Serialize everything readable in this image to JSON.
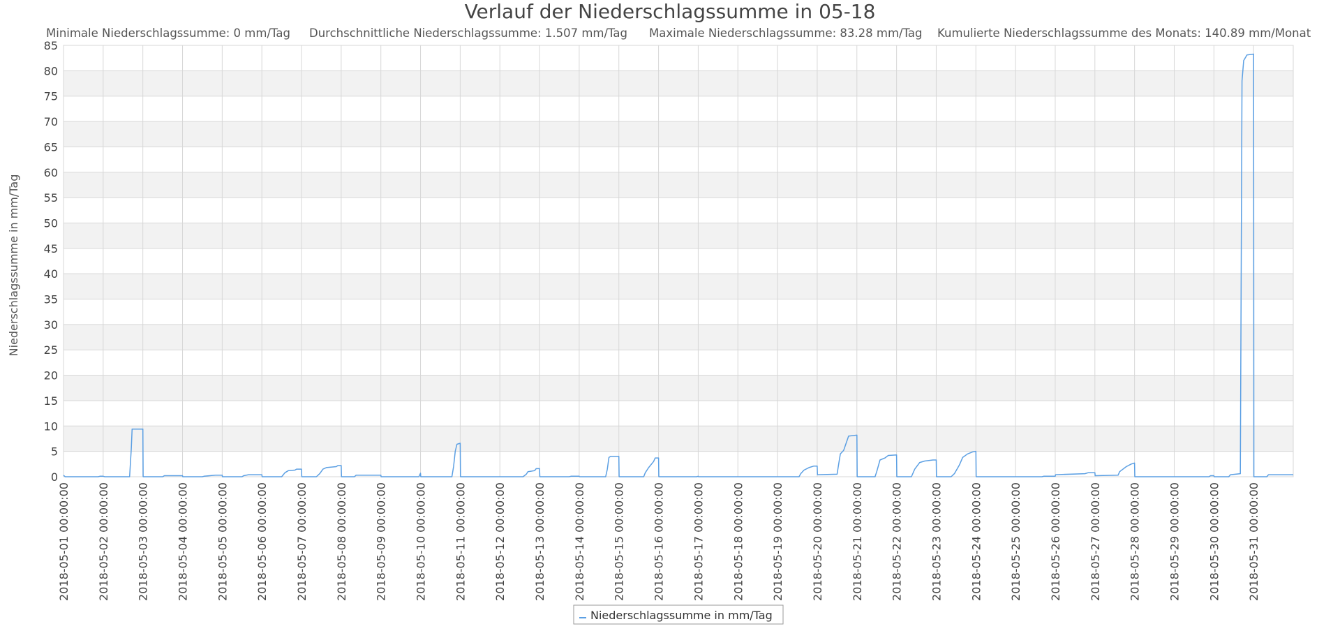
{
  "chart_data": {
    "type": "line",
    "title": "Verlauf der Niederschlagssumme in 05-18",
    "subtitle_stats": [
      "Minimale Niederschlagssumme: 0 mm/Tag",
      "Durchschnittliche Niederschlagssumme: 1.507 mm/Tag",
      "Maximale Niederschlagssumme: 83.28 mm/Tag",
      "Kumulierte Niederschlagssumme des Monats: 140.89 mm/Monat"
    ],
    "xlabel": "",
    "ylabel": "Niederschlagssumme in mm/Tag",
    "ylim": [
      0,
      85
    ],
    "yticks": [
      0,
      5,
      10,
      15,
      20,
      25,
      30,
      35,
      40,
      45,
      50,
      55,
      60,
      65,
      70,
      75,
      80,
      85
    ],
    "xlim": [
      "2018-05-01 00:00",
      "2018-06-01 00:00"
    ],
    "xtick_labels": [
      "2018-05-01 00:00:00",
      "2018-05-02 00:00:00",
      "2018-05-03 00:00:00",
      "2018-05-04 00:00:00",
      "2018-05-05 00:00:00",
      "2018-05-06 00:00:00",
      "2018-05-07 00:00:00",
      "2018-05-08 00:00:00",
      "2018-05-09 00:00:00",
      "2018-05-10 00:00:00",
      "2018-05-11 00:00:00",
      "2018-05-12 00:00:00",
      "2018-05-13 00:00:00",
      "2018-05-14 00:00:00",
      "2018-05-15 00:00:00",
      "2018-05-16 00:00:00",
      "2018-05-17 00:00:00",
      "2018-05-18 00:00:00",
      "2018-05-19 00:00:00",
      "2018-05-20 00:00:00",
      "2018-05-21 00:00:00",
      "2018-05-22 00:00:00",
      "2018-05-23 00:00:00",
      "2018-05-24 00:00:00",
      "2018-05-25 00:00:00",
      "2018-05-26 00:00:00",
      "2018-05-27 00:00:00",
      "2018-05-28 00:00:00",
      "2018-05-29 00:00:00",
      "2018-05-30 00:00:00",
      "2018-05-31 00:00:00"
    ],
    "grid": true,
    "legend_position": "bottom-center",
    "colors": {
      "series": "#5b9fe3",
      "band": "#f2f2f2",
      "grid": "#d7d7d7",
      "text": "#555555"
    },
    "series": [
      {
        "name": "Niederschlagssumme in mm/Tag",
        "points": [
          [
            "2018-05-01 00:00",
            0.3
          ],
          [
            "2018-05-01 01:00",
            0
          ],
          [
            "2018-05-01 21:00",
            0
          ],
          [
            "2018-05-01 22:00",
            0.1
          ],
          [
            "2018-05-02 00:00",
            0.1
          ],
          [
            "2018-05-02 01:00",
            0
          ],
          [
            "2018-05-02 16:00",
            0
          ],
          [
            "2018-05-02 17:00",
            5.5
          ],
          [
            "2018-05-02 17:30",
            9.4
          ],
          [
            "2018-05-03 00:00",
            9.4
          ],
          [
            "2018-05-03 00:10",
            0
          ],
          [
            "2018-05-03 12:00",
            0
          ],
          [
            "2018-05-03 13:00",
            0.2
          ],
          [
            "2018-05-04 00:00",
            0.2
          ],
          [
            "2018-05-04 00:10",
            0
          ],
          [
            "2018-05-04 12:00",
            0
          ],
          [
            "2018-05-04 13:00",
            0.1
          ],
          [
            "2018-05-04 20:00",
            0.3
          ],
          [
            "2018-05-05 00:00",
            0.3
          ],
          [
            "2018-05-05 00:10",
            0
          ],
          [
            "2018-05-05 12:00",
            0
          ],
          [
            "2018-05-05 13:00",
            0.2
          ],
          [
            "2018-05-05 16:00",
            0.4
          ],
          [
            "2018-05-06 00:00",
            0.4
          ],
          [
            "2018-05-06 00:10",
            0
          ],
          [
            "2018-05-06 12:00",
            0
          ],
          [
            "2018-05-06 14:00",
            0.8
          ],
          [
            "2018-05-06 16:00",
            1.2
          ],
          [
            "2018-05-06 20:00",
            1.3
          ],
          [
            "2018-05-06 21:00",
            1.5
          ],
          [
            "2018-05-07 00:00",
            1.5
          ],
          [
            "2018-05-07 00:10",
            0
          ],
          [
            "2018-05-07 09:00",
            0
          ],
          [
            "2018-05-07 11:00",
            0.6
          ],
          [
            "2018-05-07 13:00",
            1.5
          ],
          [
            "2018-05-07 15:00",
            1.8
          ],
          [
            "2018-05-07 21:00",
            2.0
          ],
          [
            "2018-05-07 22:00",
            2.2
          ],
          [
            "2018-05-08 00:00",
            2.2
          ],
          [
            "2018-05-08 00:10",
            0
          ],
          [
            "2018-05-08 08:00",
            0
          ],
          [
            "2018-05-08 09:00",
            0.3
          ],
          [
            "2018-05-09 00:00",
            0.3
          ],
          [
            "2018-05-09 00:10",
            0
          ],
          [
            "2018-05-09 23:00",
            0
          ],
          [
            "2018-05-10 00:00",
            0.7
          ],
          [
            "2018-05-10 00:10",
            0
          ],
          [
            "2018-05-10 19:00",
            0
          ],
          [
            "2018-05-10 20:00",
            2.0
          ],
          [
            "2018-05-10 21:00",
            5.0
          ],
          [
            "2018-05-10 22:00",
            6.4
          ],
          [
            "2018-05-11 00:00",
            6.6
          ],
          [
            "2018-05-11 00:10",
            0
          ],
          [
            "2018-05-12 14:00",
            0
          ],
          [
            "2018-05-12 16:00",
            0.5
          ],
          [
            "2018-05-12 17:00",
            1.0
          ],
          [
            "2018-05-12 21:00",
            1.2
          ],
          [
            "2018-05-12 22:00",
            1.6
          ],
          [
            "2018-05-13 00:00",
            1.6
          ],
          [
            "2018-05-13 00:10",
            0
          ],
          [
            "2018-05-13 18:00",
            0
          ],
          [
            "2018-05-13 19:00",
            0.1
          ],
          [
            "2018-05-14 00:00",
            0.1
          ],
          [
            "2018-05-14 00:10",
            0
          ],
          [
            "2018-05-14 16:00",
            0
          ],
          [
            "2018-05-14 17:00",
            1.5
          ],
          [
            "2018-05-14 18:00",
            3.8
          ],
          [
            "2018-05-14 19:00",
            4.0
          ],
          [
            "2018-05-15 00:00",
            4.0
          ],
          [
            "2018-05-15 00:10",
            0
          ],
          [
            "2018-05-15 15:00",
            0
          ],
          [
            "2018-05-15 16:00",
            0.8
          ],
          [
            "2018-05-15 18:00",
            1.8
          ],
          [
            "2018-05-15 21:00",
            3.0
          ],
          [
            "2018-05-15 22:00",
            3.7
          ],
          [
            "2018-05-16 00:00",
            3.7
          ],
          [
            "2018-05-16 00:10",
            0
          ],
          [
            "2018-05-16 23:00",
            0
          ],
          [
            "2018-05-17 00:00",
            0.1
          ],
          [
            "2018-05-17 00:10",
            0
          ],
          [
            "2018-05-19 13:00",
            0
          ],
          [
            "2018-05-19 14:00",
            0.6
          ],
          [
            "2018-05-19 16:00",
            1.3
          ],
          [
            "2018-05-19 19:00",
            1.8
          ],
          [
            "2018-05-19 22:00",
            2.1
          ],
          [
            "2018-05-20 00:00",
            2.1
          ],
          [
            "2018-05-20 00:10",
            0.4
          ],
          [
            "2018-05-20 12:00",
            0.5
          ],
          [
            "2018-05-20 13:00",
            2.5
          ],
          [
            "2018-05-20 14:00",
            4.5
          ],
          [
            "2018-05-20 16:00",
            5.2
          ],
          [
            "2018-05-20 19:00",
            8.0
          ],
          [
            "2018-05-21 00:00",
            8.2
          ],
          [
            "2018-05-21 00:10",
            0
          ],
          [
            "2018-05-21 11:00",
            0
          ],
          [
            "2018-05-21 12:00",
            1.0
          ],
          [
            "2018-05-21 14:00",
            3.3
          ],
          [
            "2018-05-21 17:00",
            3.7
          ],
          [
            "2018-05-21 19:00",
            4.2
          ],
          [
            "2018-05-22 00:00",
            4.3
          ],
          [
            "2018-05-22 00:10",
            0
          ],
          [
            "2018-05-22 09:00",
            0
          ],
          [
            "2018-05-22 11:00",
            1.5
          ],
          [
            "2018-05-22 14:00",
            2.8
          ],
          [
            "2018-05-22 17:00",
            3.1
          ],
          [
            "2018-05-22 22:00",
            3.3
          ],
          [
            "2018-05-23 00:00",
            3.3
          ],
          [
            "2018-05-23 00:10",
            0
          ],
          [
            "2018-05-23 09:00",
            0
          ],
          [
            "2018-05-23 11:00",
            0.6
          ],
          [
            "2018-05-23 14:00",
            2.3
          ],
          [
            "2018-05-23 16:00",
            3.8
          ],
          [
            "2018-05-23 19:00",
            4.5
          ],
          [
            "2018-05-23 22:00",
            4.9
          ],
          [
            "2018-05-24 00:00",
            5.0
          ],
          [
            "2018-05-24 00:10",
            0
          ],
          [
            "2018-05-25 16:00",
            0
          ],
          [
            "2018-05-25 17:00",
            0.1
          ],
          [
            "2018-05-26 00:00",
            0.1
          ],
          [
            "2018-05-26 00:10",
            0.4
          ],
          [
            "2018-05-26 18:00",
            0.6
          ],
          [
            "2018-05-26 20:00",
            0.8
          ],
          [
            "2018-05-27 00:00",
            0.8
          ],
          [
            "2018-05-27 00:10",
            0.2
          ],
          [
            "2018-05-27 14:00",
            0.3
          ],
          [
            "2018-05-27 15:00",
            1.0
          ],
          [
            "2018-05-27 19:00",
            2.0
          ],
          [
            "2018-05-27 22:00",
            2.5
          ],
          [
            "2018-05-28 00:00",
            2.7
          ],
          [
            "2018-05-28 00:10",
            0
          ],
          [
            "2018-05-29 21:00",
            0
          ],
          [
            "2018-05-29 22:00",
            0.2
          ],
          [
            "2018-05-30 00:00",
            0.2
          ],
          [
            "2018-05-30 00:10",
            0
          ],
          [
            "2018-05-30 09:00",
            0
          ],
          [
            "2018-05-30 10:00",
            0.4
          ],
          [
            "2018-05-30 16:00",
            0.6
          ],
          [
            "2018-05-30 17:00",
            78
          ],
          [
            "2018-05-30 18:00",
            82
          ],
          [
            "2018-05-30 20:00",
            83.1
          ],
          [
            "2018-05-31 00:00",
            83.28
          ],
          [
            "2018-05-31 00:10",
            0
          ],
          [
            "2018-05-31 08:00",
            0
          ],
          [
            "2018-05-31 09:00",
            0.4
          ],
          [
            "2018-06-01 00:00",
            0.4
          ]
        ]
      }
    ]
  }
}
